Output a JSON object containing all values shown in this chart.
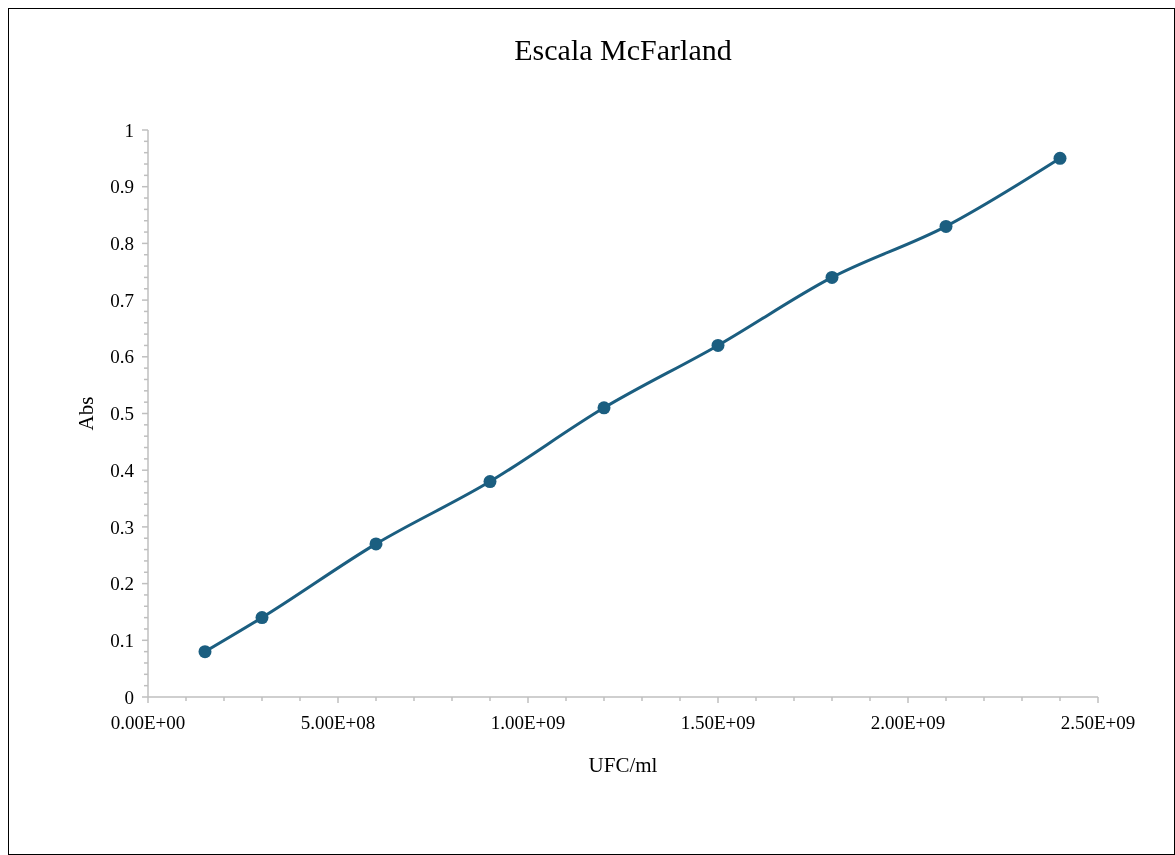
{
  "chart_data": {
    "type": "line",
    "title": "Escala McFarland",
    "xlabel": "UFC/ml",
    "ylabel": "Abs",
    "x": [
      150000000,
      300000000,
      600000000,
      900000000,
      1200000000,
      1500000000,
      1800000000,
      2100000000,
      2400000000
    ],
    "series": [
      {
        "color": "#1b5e80",
        "values": [
          0.08,
          0.14,
          0.27,
          0.38,
          0.51,
          0.62,
          0.74,
          0.83,
          0.95
        ]
      }
    ],
    "marker": "circle",
    "line_style": "solid",
    "grid": false,
    "xlim": [
      0,
      2500000000
    ],
    "ylim": [
      0,
      1
    ],
    "xticks": [
      {
        "value": 0,
        "label": "0.00E+00"
      },
      {
        "value": 100000000,
        "label": null
      },
      {
        "value": 200000000,
        "label": null
      },
      {
        "value": 300000000,
        "label": null
      },
      {
        "value": 400000000,
        "label": null
      },
      {
        "value": 500000000,
        "label": "5.00E+08"
      },
      {
        "value": 600000000,
        "label": null
      },
      {
        "value": 700000000,
        "label": null
      },
      {
        "value": 800000000,
        "label": null
      },
      {
        "value": 900000000,
        "label": null
      },
      {
        "value": 1000000000,
        "label": "1.00E+09"
      },
      {
        "value": 1100000000,
        "label": null
      },
      {
        "value": 1200000000,
        "label": null
      },
      {
        "value": 1300000000,
        "label": null
      },
      {
        "value": 1400000000,
        "label": null
      },
      {
        "value": 1500000000,
        "label": "1.50E+09"
      },
      {
        "value": 1600000000,
        "label": null
      },
      {
        "value": 1700000000,
        "label": null
      },
      {
        "value": 1800000000,
        "label": null
      },
      {
        "value": 1900000000,
        "label": null
      },
      {
        "value": 2000000000,
        "label": "2.00E+09"
      },
      {
        "value": 2100000000,
        "label": null
      },
      {
        "value": 2200000000,
        "label": null
      },
      {
        "value": 2300000000,
        "label": null
      },
      {
        "value": 2400000000,
        "label": null
      },
      {
        "value": 2500000000,
        "label": "2.50E+09"
      }
    ],
    "yticks": [
      0,
      {
        "value": 0.02,
        "label": null
      },
      {
        "value": 0.04,
        "label": null
      },
      {
        "value": 0.06,
        "label": null
      },
      {
        "value": 0.08,
        "label": null
      },
      0.1,
      {
        "value": 0.12,
        "label": null
      },
      {
        "value": 0.14,
        "label": null
      },
      {
        "value": 0.16,
        "label": null
      },
      {
        "value": 0.18,
        "label": null
      },
      0.2,
      {
        "value": 0.22,
        "label": null
      },
      {
        "value": 0.24,
        "label": null
      },
      {
        "value": 0.26,
        "label": null
      },
      {
        "value": 0.28,
        "label": null
      },
      0.3,
      {
        "value": 0.32,
        "label": null
      },
      {
        "value": 0.34,
        "label": null
      },
      {
        "value": 0.36,
        "label": null
      },
      {
        "value": 0.38,
        "label": null
      },
      0.4,
      {
        "value": 0.42,
        "label": null
      },
      {
        "value": 0.44,
        "label": null
      },
      {
        "value": 0.46,
        "label": null
      },
      {
        "value": 0.48,
        "label": null
      },
      0.5,
      {
        "value": 0.52,
        "label": null
      },
      {
        "value": 0.54,
        "label": null
      },
      {
        "value": 0.56,
        "label": null
      },
      {
        "value": 0.58,
        "label": null
      },
      0.6,
      {
        "value": 0.62,
        "label": null
      },
      {
        "value": 0.64,
        "label": null
      },
      {
        "value": 0.66,
        "label": null
      },
      {
        "value": 0.68,
        "label": null
      },
      0.7,
      {
        "value": 0.72,
        "label": null
      },
      {
        "value": 0.74,
        "label": null
      },
      {
        "value": 0.76,
        "label": null
      },
      {
        "value": 0.78,
        "label": null
      },
      0.8,
      {
        "value": 0.82,
        "label": null
      },
      {
        "value": 0.84,
        "label": null
      },
      {
        "value": 0.86,
        "label": null
      },
      {
        "value": 0.88,
        "label": null
      },
      0.9,
      {
        "value": 0.92,
        "label": null
      },
      {
        "value": 0.94,
        "label": null
      },
      {
        "value": 0.96,
        "label": null
      },
      {
        "value": 0.98,
        "label": null
      },
      1
    ]
  }
}
